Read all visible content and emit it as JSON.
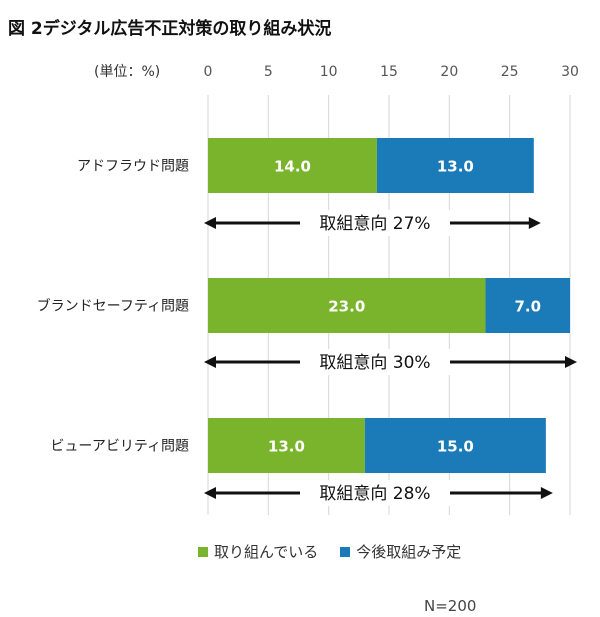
{
  "title": "図 2デジタル広告不正対策の取り組み状況",
  "note": "N=200",
  "chart_data": {
    "type": "bar",
    "orientation": "horizontal",
    "stacked": true,
    "unit_label": "(単位：%)",
    "xlim": [
      0,
      30
    ],
    "x_ticks": [
      0,
      5,
      10,
      15,
      20,
      25,
      30
    ],
    "grid": true,
    "legend_position": "bottom",
    "categories": [
      "アドフラウド問題",
      "ブランドセーフティ問題",
      "ビューアビリティ問題"
    ],
    "series": [
      {
        "name": "取り組んでいる",
        "color": "#7ab42c",
        "values": [
          14.0,
          23.0,
          13.0
        ]
      },
      {
        "name": "今後取組み予定",
        "color": "#1b7ab8",
        "values": [
          13.0,
          7.0,
          15.0
        ]
      }
    ],
    "annotations": [
      "取組意向 27%",
      "取組意向 30%",
      "取組意向 28%"
    ]
  }
}
